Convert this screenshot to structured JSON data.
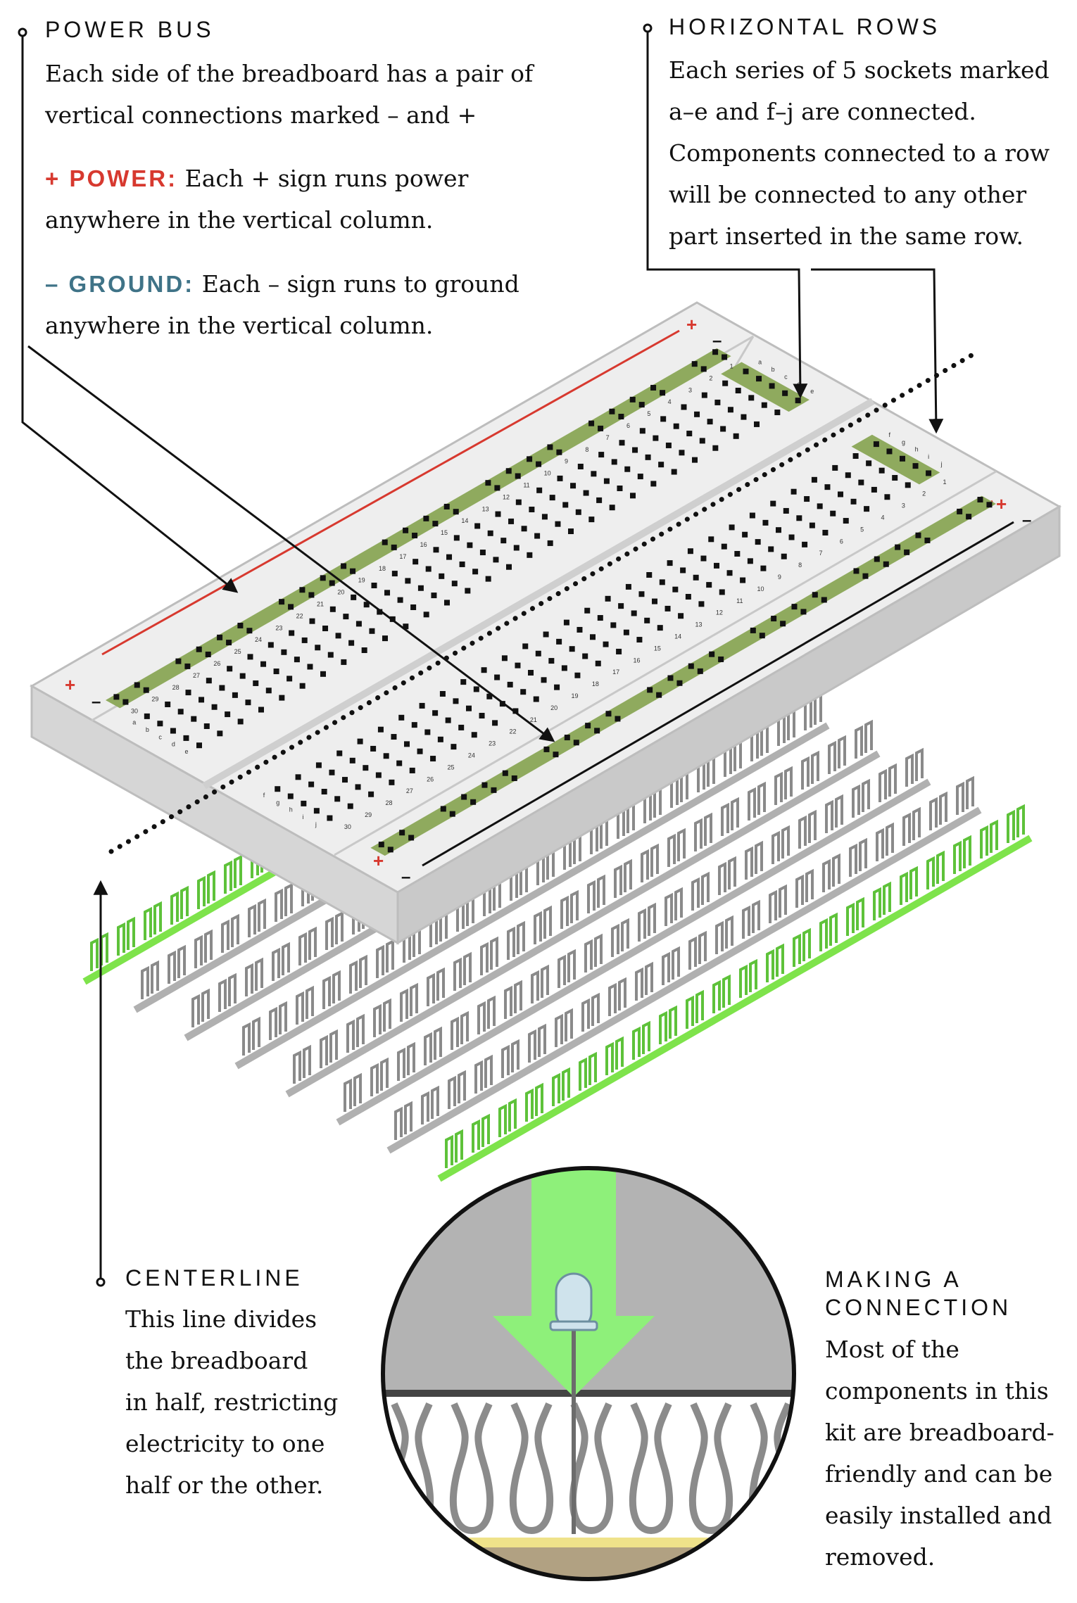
{
  "power_bus": {
    "title": "POWER BUS",
    "text": [
      "Each side of the breadboard has a pair of",
      "vertical connections marked – and +"
    ],
    "plus_label": "+ POWER:",
    "plus_text": [
      "Each + sign runs power",
      "anywhere in the vertical column."
    ],
    "minus_label": "– GROUND:",
    "minus_text": [
      "Each – sign runs to ground",
      "anywhere in the vertical column."
    ]
  },
  "horizontal_rows": {
    "title": "HORIZONTAL ROWS",
    "text": [
      "Each series of 5 sockets marked",
      "a–e and f–j are connected.",
      "Components connected to a row",
      "will be connected to any other",
      "part inserted in the same row."
    ]
  },
  "centerline": {
    "title": "CENTERLINE",
    "text": [
      "This line divides",
      "the breadboard",
      "in half, restricting",
      "electricity to one",
      "half or the other."
    ]
  },
  "making_connection": {
    "title": [
      "MAKING A",
      "CONNECTION"
    ],
    "text": [
      "Most of the",
      "components in this",
      "kit are breadboard-",
      "friendly and can be",
      "easily installed and",
      "removed."
    ]
  },
  "board": {
    "plus_sign": "+",
    "minus_sign": "–",
    "row_letters_left": [
      "a",
      "b",
      "c",
      "d",
      "e"
    ],
    "row_letters_right": [
      "f",
      "g",
      "h",
      "i",
      "j"
    ],
    "row_numbers": [
      "1",
      "2",
      "3",
      "4",
      "5",
      "6",
      "7",
      "8",
      "9",
      "10",
      "11",
      "12",
      "13",
      "14",
      "15",
      "16",
      "17",
      "18",
      "19",
      "20",
      "21",
      "22",
      "23",
      "24",
      "25",
      "26",
      "27",
      "28",
      "29",
      "30"
    ]
  },
  "colors": {
    "power_red": "#d7392f",
    "ground_teal": "#3f7387",
    "rail_green": "#8faa5e",
    "clip_green": "#7ee34b",
    "board_gray": "#eeeeee"
  }
}
